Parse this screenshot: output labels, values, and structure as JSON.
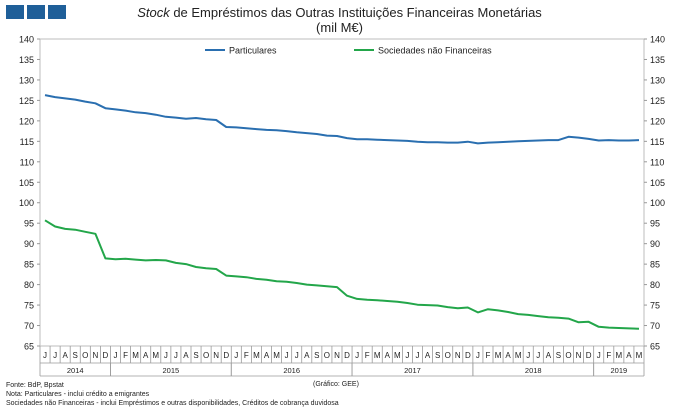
{
  "header": {
    "title_italic": "Stock",
    "title_rest": " de Empréstimos das Outras Instituições Financeiras Monetárias",
    "subtitle": "(mil M€)"
  },
  "footer": {
    "source": "Fonte: BdP, Bpstat",
    "note1": "Nota: Particulares - inclui crédito a emigrantes",
    "note2": "Sociedades não Financeiras - inclui Empréstimos e outras disponibilidades, Créditos de cobrança duvidosa",
    "credit": "(Gráfico: GEE)"
  },
  "colors": {
    "particulares": "#2a6fb0",
    "snf": "#23a64a",
    "logo": "#1f5f99"
  },
  "chart_data": {
    "type": "line",
    "ylim": [
      65,
      140
    ],
    "yticks": [
      65,
      70,
      75,
      80,
      85,
      90,
      95,
      100,
      105,
      110,
      115,
      120,
      125,
      130,
      135,
      140
    ],
    "legend_position": "top",
    "months": [
      "J",
      "J",
      "A",
      "S",
      "O",
      "N",
      "D",
      "J",
      "F",
      "M",
      "A",
      "M",
      "J",
      "J",
      "A",
      "S",
      "O",
      "N",
      "D",
      "J",
      "F",
      "M",
      "A",
      "M",
      "J",
      "J",
      "A",
      "S",
      "O",
      "N",
      "D",
      "J",
      "F",
      "M",
      "A",
      "M",
      "J",
      "J",
      "A",
      "S",
      "O",
      "N",
      "D",
      "J",
      "F",
      "M",
      "A",
      "M",
      "J",
      "J",
      "A",
      "S",
      "O",
      "N",
      "D",
      "J",
      "F",
      "M",
      "A",
      "M"
    ],
    "years": [
      {
        "label": "2014",
        "start": 0,
        "end": 6
      },
      {
        "label": "2015",
        "start": 7,
        "end": 18
      },
      {
        "label": "2016",
        "start": 19,
        "end": 30
      },
      {
        "label": "2017",
        "start": 31,
        "end": 42
      },
      {
        "label": "2018",
        "start": 43,
        "end": 54
      },
      {
        "label": "2019",
        "start": 55,
        "end": 59
      }
    ],
    "series": [
      {
        "name": "Particulares",
        "color": "#2a6fb0",
        "values": [
          126.3,
          125.8,
          125.5,
          125.2,
          124.7,
          124.3,
          123.1,
          122.8,
          122.5,
          122.1,
          121.9,
          121.5,
          121.0,
          120.8,
          120.5,
          120.7,
          120.4,
          120.2,
          118.5,
          118.4,
          118.2,
          118.0,
          117.8,
          117.7,
          117.5,
          117.2,
          117.0,
          116.8,
          116.4,
          116.3,
          115.8,
          115.5,
          115.5,
          115.4,
          115.3,
          115.2,
          115.1,
          114.9,
          114.8,
          114.8,
          114.7,
          114.7,
          114.9,
          114.5,
          114.7,
          114.8,
          114.9,
          115.0,
          115.1,
          115.2,
          115.3,
          115.3,
          116.1,
          115.9,
          115.6,
          115.2,
          115.3,
          115.2,
          115.2,
          115.3
        ]
      },
      {
        "name": "Sociedades não Financeiras",
        "color": "#23a64a",
        "values": [
          95.7,
          94.2,
          93.6,
          93.4,
          92.9,
          92.4,
          86.4,
          86.2,
          86.3,
          86.1,
          85.9,
          86.0,
          85.9,
          85.3,
          85.0,
          84.3,
          84.0,
          83.8,
          82.2,
          82.0,
          81.8,
          81.4,
          81.2,
          80.8,
          80.7,
          80.4,
          80.0,
          79.8,
          79.6,
          79.4,
          77.3,
          76.5,
          76.3,
          76.2,
          76.0,
          75.8,
          75.5,
          75.1,
          75.0,
          74.9,
          74.5,
          74.2,
          74.4,
          73.2,
          74.0,
          73.7,
          73.3,
          72.8,
          72.6,
          72.3,
          72.0,
          71.9,
          71.7,
          70.8,
          70.9,
          69.7,
          69.5,
          69.4,
          69.3,
          69.2
        ]
      }
    ]
  }
}
